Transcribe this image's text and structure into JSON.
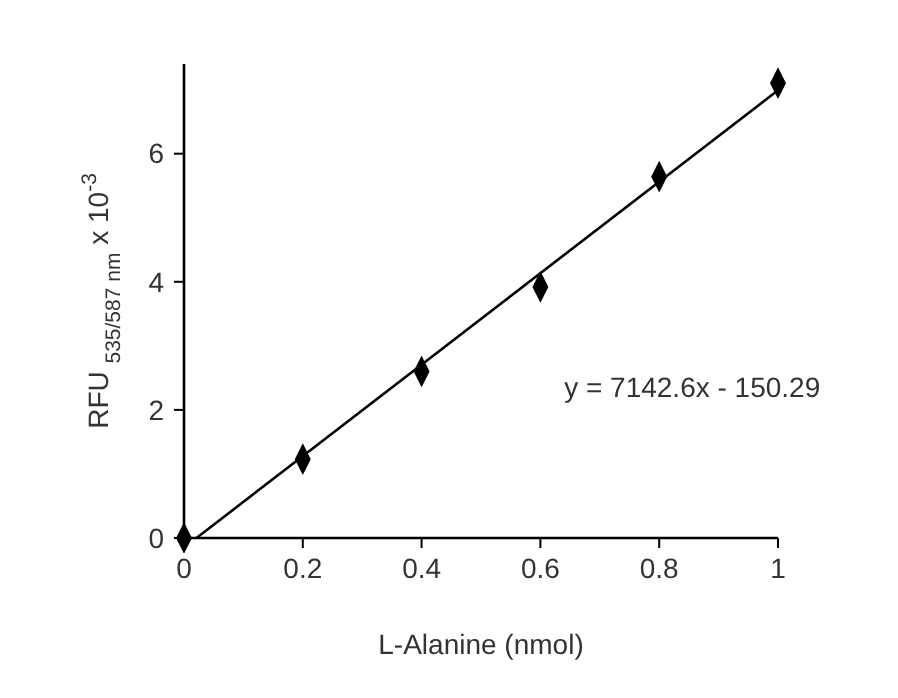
{
  "chart_data": {
    "type": "scatter",
    "xlabel": "L-Alanine (nmol)",
    "ylabel": "RFU $_{535/587 nm}$ x 10$^{-3}$",
    "xlim": [
      0,
      1
    ],
    "ylim": [
      0,
      7.4
    ],
    "xticks": [
      0,
      0.2,
      0.4,
      0.6,
      0.8,
      1
    ],
    "yticks": [
      0,
      2,
      4,
      6
    ],
    "marker": "diamond",
    "grid": false,
    "series": [
      {
        "color": "#000000",
        "x": [
          0,
          0.2,
          0.4,
          0.6,
          0.8,
          1
        ],
        "values": [
          0,
          1.23,
          2.6,
          3.92,
          5.64,
          7.1
        ]
      },
      {
        "type": "line",
        "marker": "none",
        "color": "#000000",
        "x": [
          0.021,
          1
        ],
        "values": [
          0,
          6.99
        ]
      }
    ],
    "annotations": [
      "y = 7142.6x - 150.29"
    ]
  }
}
